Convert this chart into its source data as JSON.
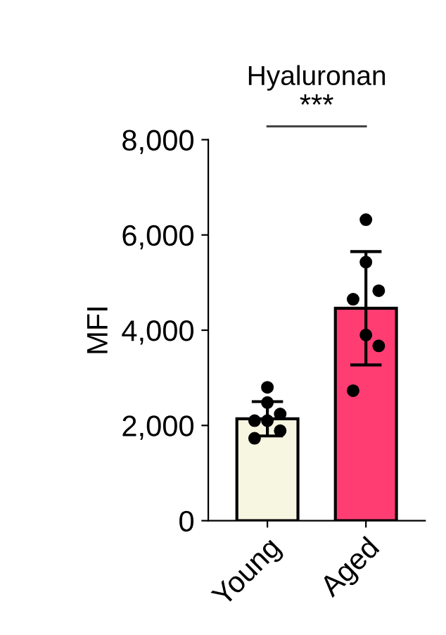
{
  "chart_data": {
    "type": "bar",
    "title": "Hyaluronan",
    "ylabel": "MFI",
    "categories": [
      "Young",
      "Aged"
    ],
    "series": [
      {
        "colors": [
          "#f7f6e1",
          "#ff3d73"
        ],
        "values": [
          2140,
          4460
        ],
        "errors": [
          360,
          1190
        ]
      },
      {
        "type": "scatter",
        "color": "#000000",
        "x": [
          "Young",
          "Young",
          "Young",
          "Young",
          "Young",
          "Young",
          "Young",
          "Aged",
          "Aged",
          "Aged",
          "Aged",
          "Aged",
          "Aged",
          "Aged"
        ],
        "values": [
          2800,
          2480,
          2240,
          2100,
          2100,
          1890,
          1730,
          6320,
          5430,
          4830,
          4650,
          3900,
          3670,
          2730
        ]
      }
    ],
    "ylim": [
      0,
      8000
    ],
    "yticks": [
      {
        "value": 0,
        "label": "0"
      },
      {
        "value": 2000,
        "label": "2,000"
      },
      {
        "value": 4000,
        "label": "4,000"
      },
      {
        "value": 6000,
        "label": "6,000"
      },
      {
        "value": 8000,
        "label": "8,000"
      }
    ],
    "annotations": [
      "***"
    ],
    "grid": false,
    "legend": false,
    "marker": "circle"
  }
}
